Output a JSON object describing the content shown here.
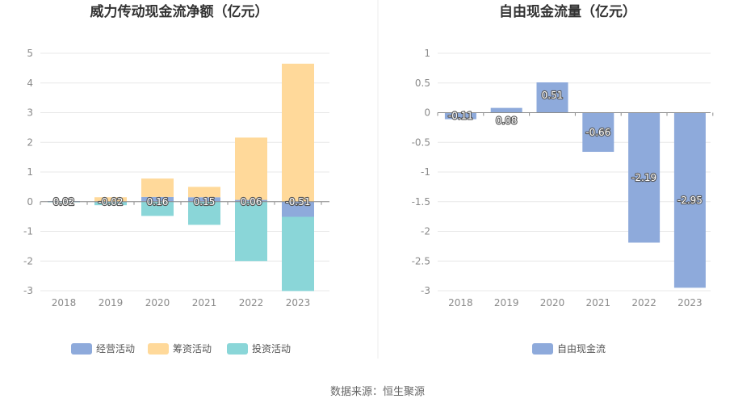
{
  "source_text": "数据来源：恒生聚源",
  "chart_data": [
    {
      "type": "bar",
      "stacked": true,
      "title": "威力传动现金流净额（亿元）",
      "categories": [
        "2018",
        "2019",
        "2020",
        "2021",
        "2022",
        "2023"
      ],
      "ylim": [
        -3,
        5
      ],
      "yticks": [
        "5",
        "4",
        "3",
        "2",
        "1",
        "0",
        "-1",
        "-2",
        "-3"
      ],
      "grid": true,
      "legend_position": "bottom",
      "series": [
        {
          "name": "经营活动",
          "color": "#8eaadb",
          "values": [
            0.02,
            -0.02,
            0.16,
            0.15,
            0.06,
            -0.51
          ],
          "labels": [
            "0.02",
            "-0.02",
            "0.16",
            "0.15",
            "0.06",
            "-0.51"
          ]
        },
        {
          "name": "筹资活动",
          "color": "#ffd99a",
          "values": [
            0.0,
            0.15,
            0.62,
            0.35,
            2.1,
            4.65
          ]
        },
        {
          "name": "投资活动",
          "color": "#8ad6d8",
          "values": [
            -0.02,
            -0.1,
            -0.48,
            -0.78,
            -2.0,
            -2.5
          ]
        }
      ]
    },
    {
      "type": "bar",
      "title": "自由现金流量（亿元）",
      "categories": [
        "2018",
        "2019",
        "2020",
        "2021",
        "2022",
        "2023"
      ],
      "ylim": [
        -3,
        1
      ],
      "yticks": [
        "1",
        "0.5",
        "0",
        "-0.5",
        "-1",
        "-1.5",
        "-2",
        "-2.5",
        "-3"
      ],
      "grid": true,
      "legend_position": "bottom",
      "series": [
        {
          "name": "自由现金流",
          "color": "#8eaadb",
          "values": [
            -0.11,
            0.08,
            0.51,
            -0.66,
            -2.19,
            -2.95
          ],
          "labels": [
            "-0.11",
            "0.08",
            "0.51",
            "-0.66",
            "-2.19",
            "-2.95"
          ]
        }
      ]
    }
  ]
}
